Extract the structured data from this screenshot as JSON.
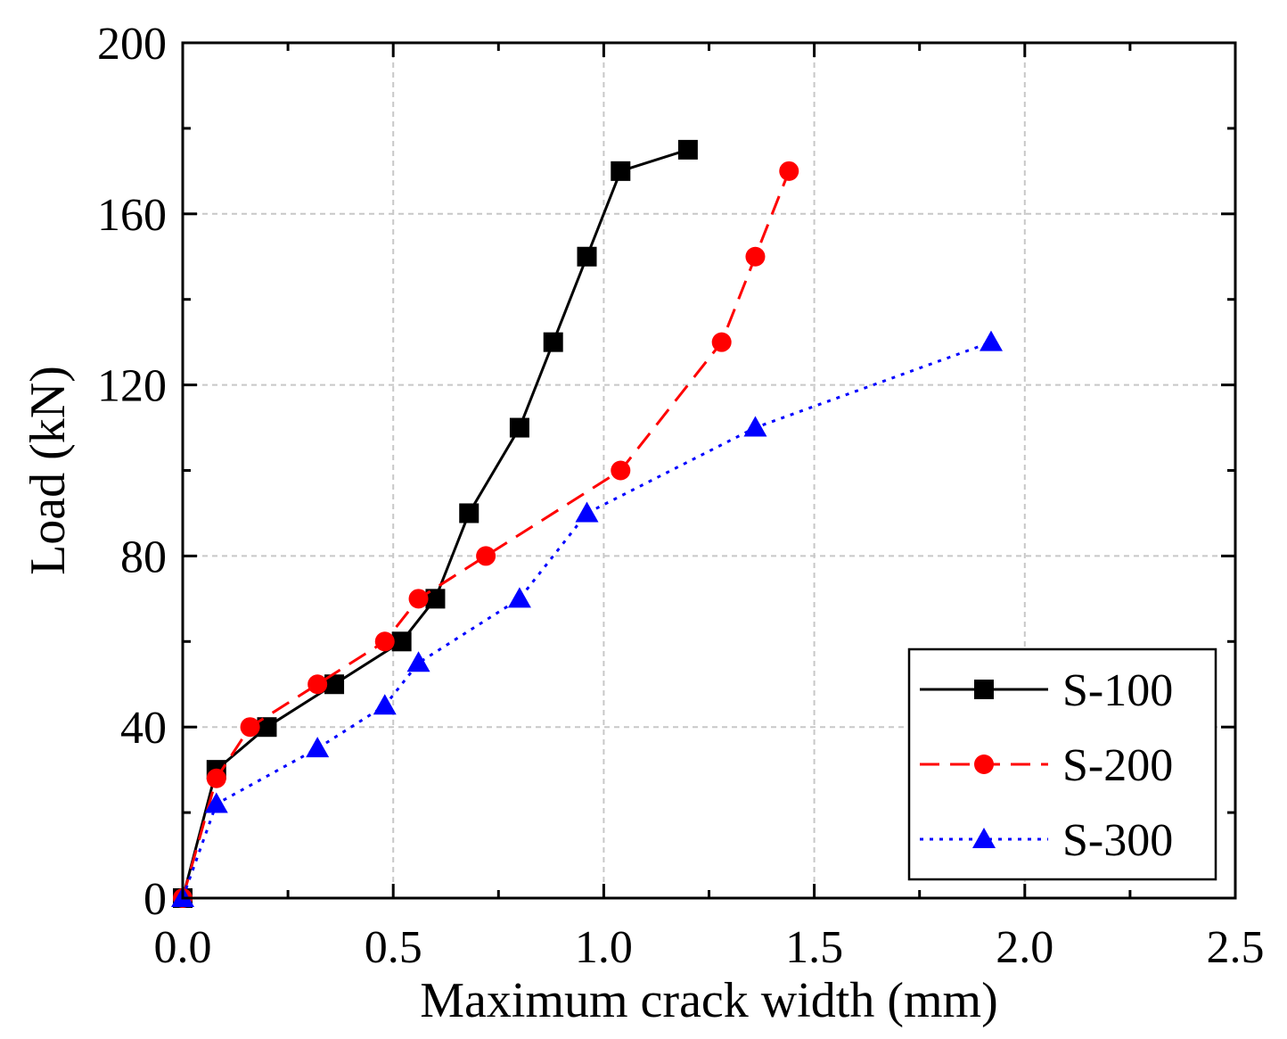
{
  "chart_data": {
    "type": "line",
    "title": "",
    "xlabel": "Maximum crack width (mm)",
    "ylabel": "Load (kN)",
    "xlim": [
      0,
      2.5
    ],
    "ylim": [
      0,
      200
    ],
    "xticks": [
      0.0,
      0.5,
      1.0,
      1.5,
      2.0,
      2.5
    ],
    "xtick_labels": [
      "0.0",
      "0.5",
      "1.0",
      "1.5",
      "2.0",
      "2.5"
    ],
    "yticks": [
      0,
      40,
      80,
      120,
      160,
      200
    ],
    "ytick_labels": [
      "0",
      "40",
      "80",
      "120",
      "160",
      "200"
    ],
    "grid": true,
    "legend_position": "bottom-right",
    "series": [
      {
        "name": "S-100",
        "color": "#000000",
        "line_style": "solid",
        "marker": "square",
        "x": [
          0,
          0.08,
          0.2,
          0.36,
          0.52,
          0.6,
          0.68,
          0.8,
          0.88,
          0.96,
          1.04,
          1.2
        ],
        "y": [
          0,
          30,
          40,
          50,
          60,
          70,
          90,
          110,
          130,
          150,
          170,
          175
        ]
      },
      {
        "name": "S-200",
        "color": "#ff0000",
        "line_style": "dashed",
        "marker": "circle",
        "x": [
          0,
          0.08,
          0.16,
          0.32,
          0.48,
          0.56,
          0.72,
          1.04,
          1.28,
          1.36,
          1.44
        ],
        "y": [
          0,
          28,
          40,
          50,
          60,
          70,
          80,
          100,
          130,
          150,
          170
        ]
      },
      {
        "name": "S-300",
        "color": "#0000ff",
        "line_style": "dotted",
        "marker": "triangle",
        "x": [
          0,
          0.08,
          0.32,
          0.48,
          0.56,
          0.8,
          0.96,
          1.36,
          1.92
        ],
        "y": [
          0,
          22,
          35,
          45,
          55,
          70,
          90,
          110,
          130
        ]
      }
    ]
  }
}
